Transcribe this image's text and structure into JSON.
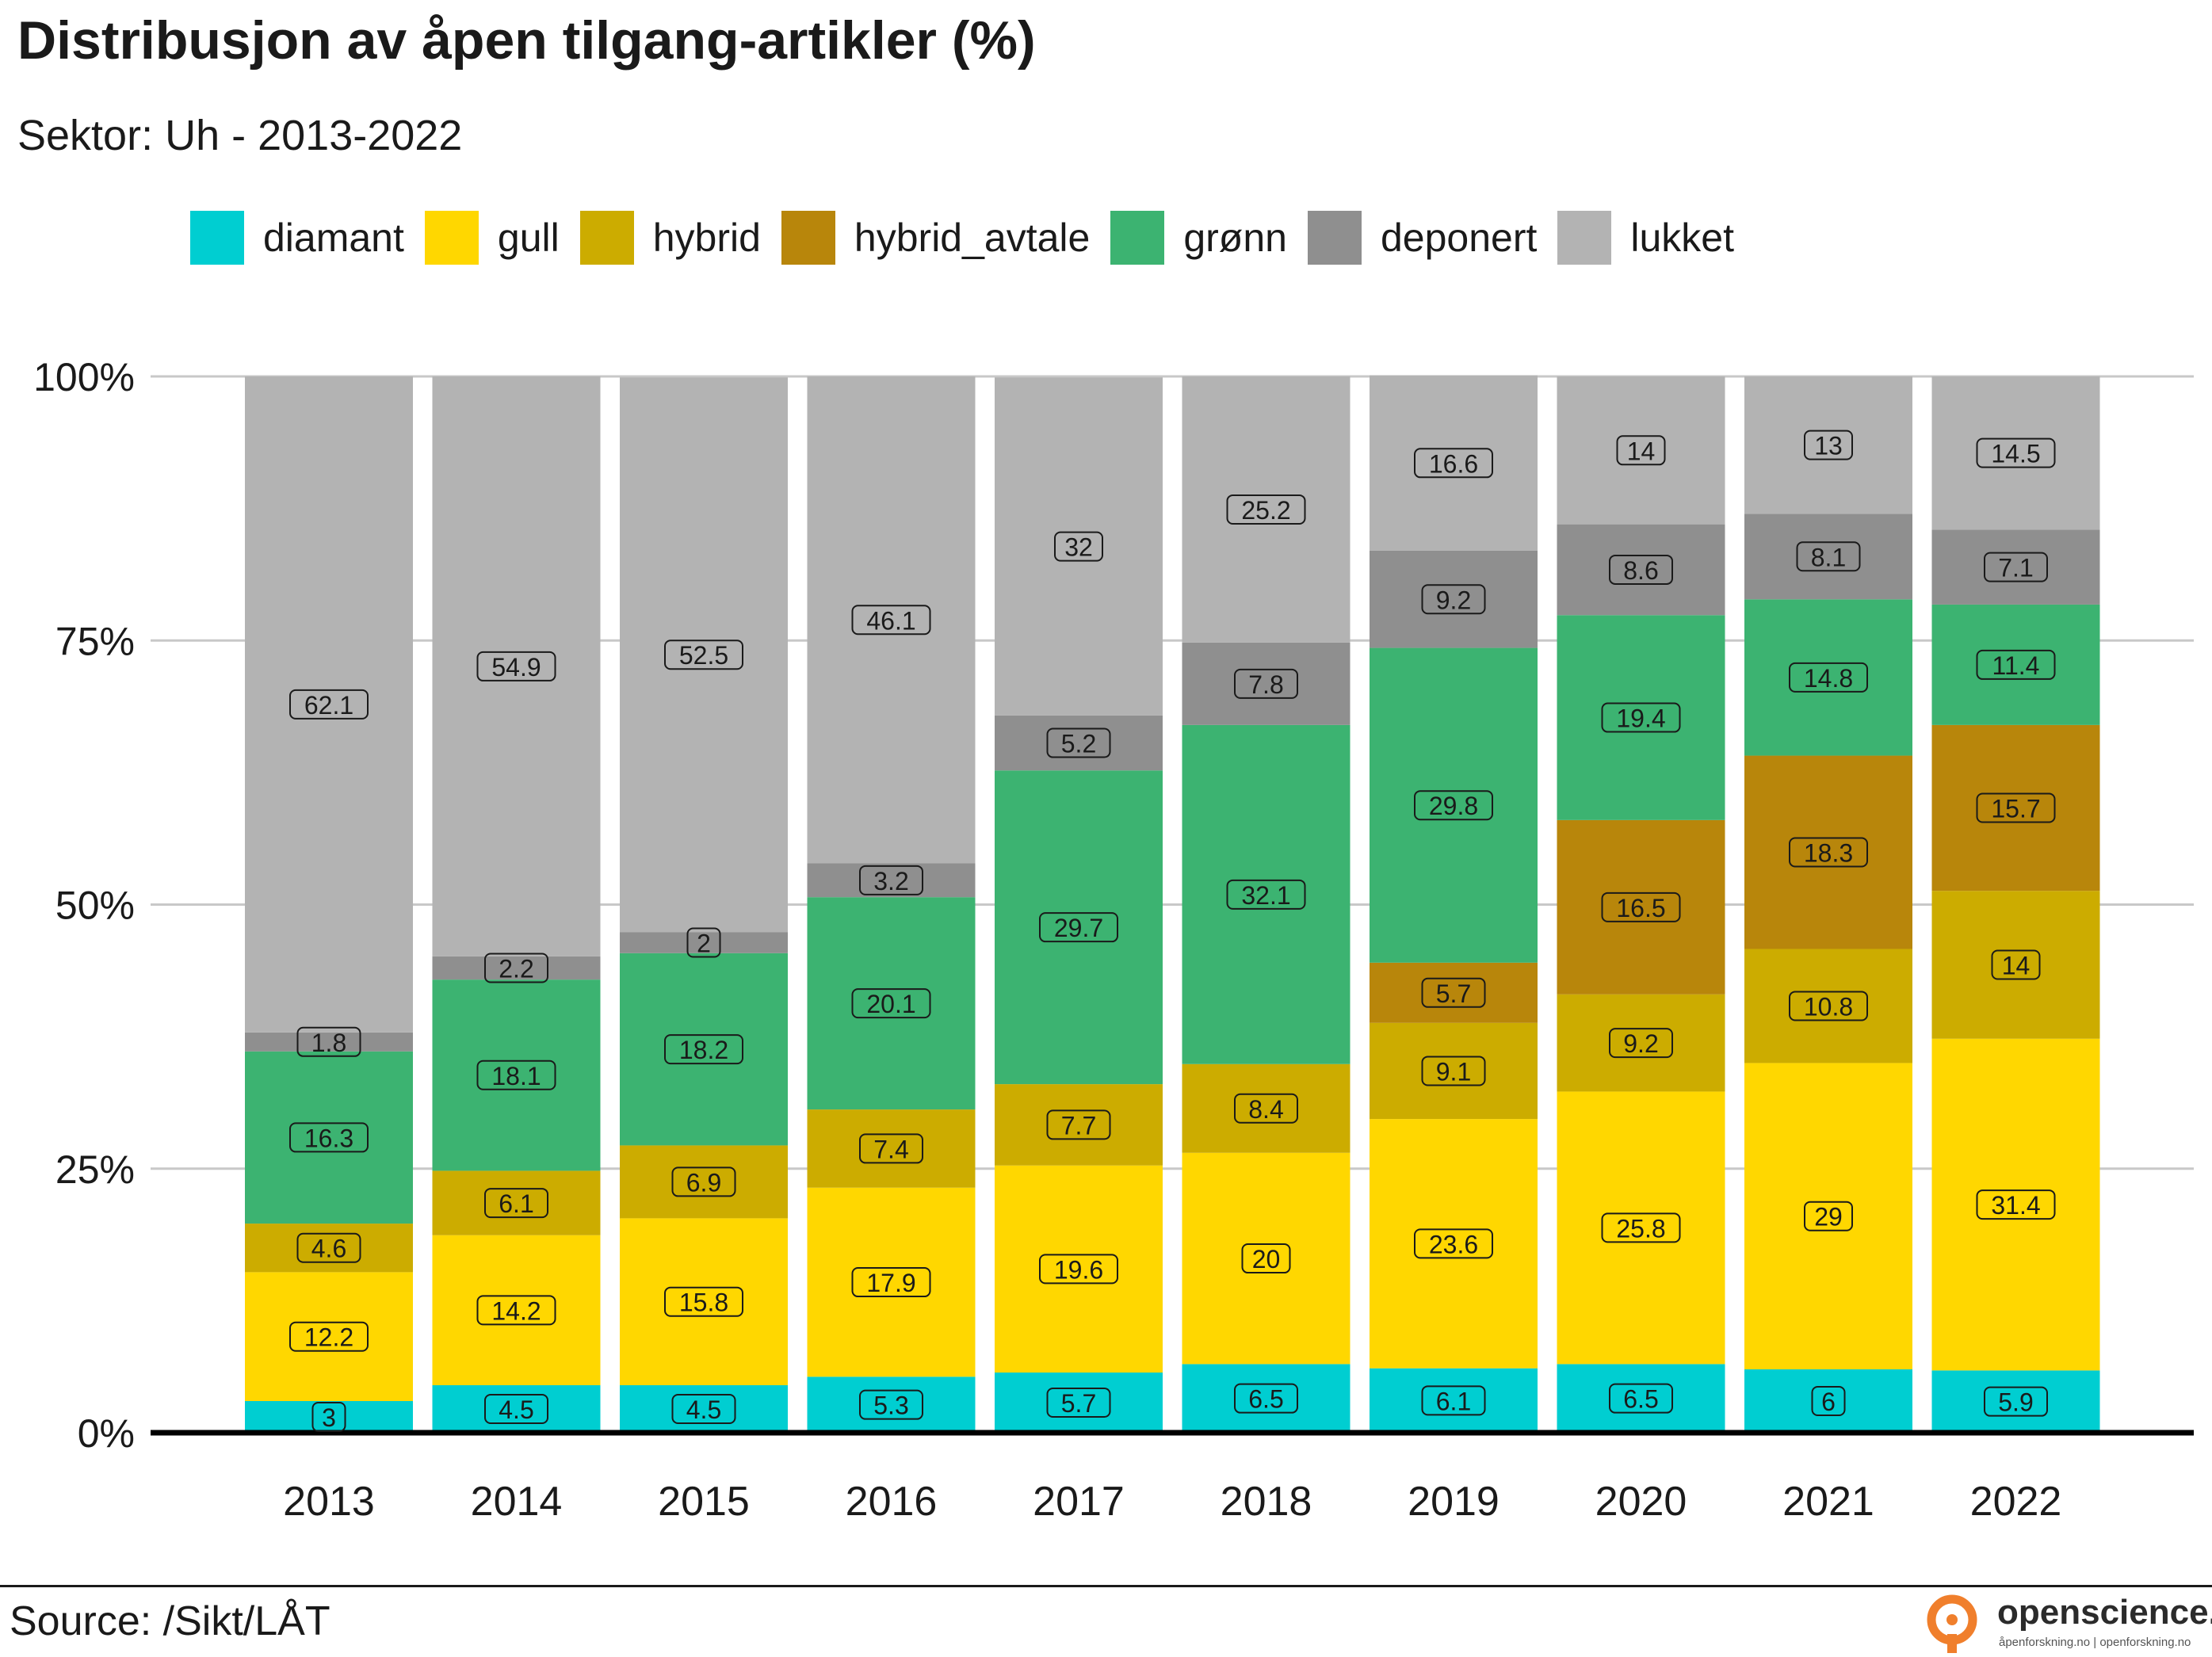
{
  "title": "Distribusjon av åpen tilgang-artikler (%)",
  "subtitle": "Sektor: Uh - 2013-2022",
  "source": "Source: /Sikt/LÅT",
  "brand": {
    "name": "openscience.no",
    "tagline": "åpenforskning.no | openforskning.no",
    "logo_icon": "open-access-lock-icon",
    "logo_color": "#F07F2C"
  },
  "legend_order": [
    "diamant",
    "gull",
    "hybrid",
    "hybrid_avtale",
    "grønn",
    "deponert",
    "lukket"
  ],
  "chart_data": {
    "type": "bar",
    "stacked": true,
    "categories": [
      "2013",
      "2014",
      "2015",
      "2016",
      "2017",
      "2018",
      "2019",
      "2020",
      "2021",
      "2022"
    ],
    "ylim": [
      0,
      100
    ],
    "y_ticks": [
      "0%",
      "25%",
      "50%",
      "75%",
      "100%"
    ],
    "y_tick_values": [
      0,
      25,
      50,
      75,
      100
    ],
    "grid": true,
    "legend_position": "top",
    "series": [
      {
        "name": "diamant",
        "color": "#00CED1",
        "values": [
          3,
          4.5,
          4.5,
          5.3,
          5.7,
          6.5,
          6.1,
          6.5,
          6,
          5.9
        ]
      },
      {
        "name": "gull",
        "color": "#FFD700",
        "values": [
          12.2,
          14.2,
          15.8,
          17.9,
          19.6,
          20,
          23.6,
          25.8,
          29,
          31.4
        ]
      },
      {
        "name": "hybrid",
        "color": "#CCAC00",
        "values": [
          4.6,
          6.1,
          6.9,
          7.4,
          7.7,
          8.4,
          9.1,
          9.2,
          10.8,
          14
        ]
      },
      {
        "name": "hybrid_avtale",
        "color": "#B8860B",
        "values": [
          0,
          0,
          0,
          0,
          0,
          0,
          5.7,
          16.5,
          18.3,
          15.7
        ]
      },
      {
        "name": "grønn",
        "color": "#3CB371",
        "values": [
          16.3,
          18.1,
          18.2,
          20.1,
          29.7,
          32.1,
          29.8,
          19.4,
          14.8,
          11.4
        ]
      },
      {
        "name": "deponert",
        "color": "#8F8F8F",
        "values": [
          1.8,
          2.2,
          2,
          3.2,
          5.2,
          7.8,
          9.2,
          8.6,
          8.1,
          7.1
        ]
      },
      {
        "name": "lukket",
        "color": "#B3B3B3",
        "values": [
          62.1,
          54.9,
          52.5,
          46.1,
          32,
          25.2,
          16.6,
          14,
          13,
          14.5
        ]
      }
    ]
  }
}
